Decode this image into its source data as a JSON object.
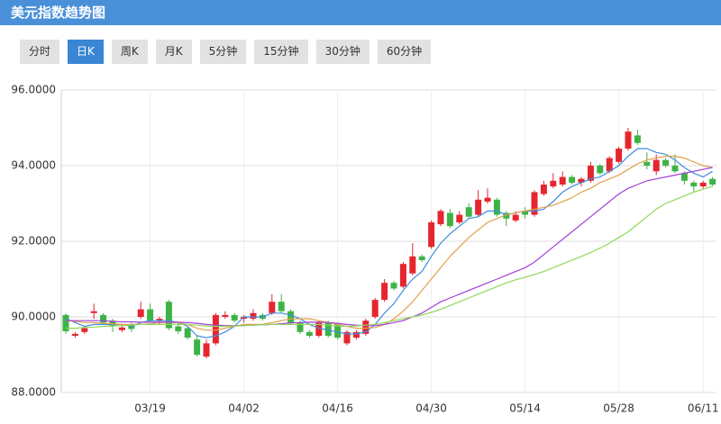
{
  "header": {
    "title": "美元指数趋势图"
  },
  "tabs": [
    "分时",
    "日K",
    "周K",
    "月K",
    "5分钟",
    "15分钟",
    "30分钟",
    "60分钟"
  ],
  "active_tab": 1,
  "chart_data": {
    "type": "candlestick",
    "categories": [
      null,
      null,
      null,
      null,
      null,
      null,
      null,
      null,
      null,
      "03/19",
      null,
      null,
      null,
      null,
      null,
      null,
      null,
      null,
      null,
      "04/02",
      null,
      null,
      null,
      null,
      null,
      null,
      null,
      null,
      null,
      "04/16",
      null,
      null,
      null,
      null,
      null,
      null,
      null,
      null,
      null,
      "04/30",
      null,
      null,
      null,
      null,
      null,
      null,
      null,
      null,
      null,
      "05/14",
      null,
      null,
      null,
      null,
      null,
      null,
      null,
      null,
      null,
      "05/28",
      null,
      null,
      null,
      null,
      null,
      null,
      null,
      null,
      "06/11",
      null
    ],
    "open": [
      90.05,
      89.5,
      89.6,
      90.1,
      90.05,
      89.9,
      89.65,
      89.8,
      90.0,
      90.2,
      89.9,
      90.4,
      89.75,
      89.7,
      89.4,
      88.95,
      89.3,
      90.0,
      90.05,
      89.95,
      89.95,
      90.05,
      90.1,
      90.4,
      90.15,
      89.85,
      89.6,
      89.5,
      89.85,
      89.8,
      89.3,
      89.45,
      89.55,
      90.0,
      90.45,
      90.9,
      90.8,
      91.15,
      91.6,
      91.85,
      92.45,
      92.75,
      92.5,
      92.9,
      92.7,
      93.05,
      93.1,
      92.75,
      92.55,
      92.8,
      92.7,
      93.25,
      93.45,
      93.5,
      93.7,
      93.55,
      93.6,
      94.0,
      93.85,
      94.1,
      94.45,
      94.8,
      94.1,
      93.85,
      94.15,
      94.0,
      93.8,
      93.55,
      93.45,
      93.65
    ],
    "high": [
      90.1,
      89.6,
      89.75,
      90.35,
      90.1,
      89.95,
      89.8,
      89.85,
      90.4,
      90.35,
      90.0,
      90.45,
      89.85,
      89.75,
      89.5,
      89.4,
      90.1,
      90.15,
      90.1,
      90.05,
      90.2,
      90.1,
      90.6,
      90.6,
      90.2,
      89.9,
      89.65,
      89.9,
      89.9,
      89.85,
      89.65,
      89.65,
      89.95,
      90.5,
      91.0,
      90.95,
      91.45,
      91.95,
      91.65,
      92.55,
      92.85,
      92.85,
      92.8,
      93.0,
      93.35,
      93.4,
      93.15,
      92.8,
      92.8,
      92.9,
      93.35,
      93.6,
      93.8,
      93.85,
      93.75,
      93.7,
      94.1,
      94.05,
      94.25,
      94.5,
      95.0,
      94.95,
      94.35,
      94.3,
      94.2,
      94.3,
      93.85,
      93.6,
      93.6,
      93.7
    ],
    "low": [
      89.55,
      89.45,
      89.55,
      89.95,
      89.8,
      89.6,
      89.6,
      89.6,
      89.95,
      89.85,
      89.8,
      89.65,
      89.55,
      89.4,
      88.95,
      88.9,
      89.25,
      89.95,
      89.85,
      89.85,
      89.9,
      89.9,
      90.05,
      90.1,
      89.8,
      89.55,
      89.45,
      89.45,
      89.45,
      89.4,
      89.25,
      89.4,
      89.5,
      89.95,
      90.4,
      90.7,
      90.75,
      91.1,
      91.45,
      91.8,
      92.4,
      92.35,
      92.45,
      92.6,
      92.65,
      93.0,
      92.65,
      92.4,
      92.5,
      92.6,
      92.65,
      93.2,
      93.4,
      93.45,
      93.5,
      93.45,
      93.55,
      93.75,
      93.8,
      94.05,
      94.4,
      94.55,
      93.9,
      93.75,
      93.95,
      93.8,
      93.5,
      93.3,
      93.4,
      93.45
    ],
    "close": [
      89.62,
      89.55,
      89.7,
      90.15,
      89.85,
      89.75,
      89.72,
      89.68,
      90.2,
      89.9,
      89.95,
      89.7,
      89.62,
      89.45,
      89.0,
      89.3,
      90.05,
      90.05,
      89.9,
      90.0,
      90.1,
      89.95,
      90.4,
      90.15,
      89.85,
      89.6,
      89.5,
      89.85,
      89.5,
      89.45,
      89.6,
      89.6,
      89.9,
      90.45,
      90.9,
      90.75,
      91.4,
      91.6,
      91.5,
      92.5,
      92.8,
      92.4,
      92.7,
      92.65,
      93.1,
      93.15,
      92.7,
      92.6,
      92.7,
      92.7,
      93.3,
      93.5,
      93.6,
      93.7,
      93.55,
      93.65,
      94.0,
      93.8,
      94.2,
      94.45,
      94.9,
      94.6,
      94.0,
      94.15,
      94.0,
      93.85,
      93.6,
      93.45,
      93.55,
      93.5
    ],
    "up_color": "#e5262f",
    "down_color": "#3db346",
    "series": [
      {
        "color": "#3d8ee0",
        "values": [
          89.95,
          89.85,
          89.75,
          89.8,
          89.8,
          89.8,
          89.8,
          89.75,
          89.85,
          89.9,
          89.9,
          89.9,
          89.85,
          89.75,
          89.5,
          89.45,
          89.5,
          89.6,
          89.75,
          90.0,
          90.0,
          90.0,
          90.1,
          90.1,
          90.05,
          89.95,
          89.8,
          89.7,
          89.65,
          89.6,
          89.55,
          89.55,
          89.6,
          89.8,
          90.1,
          90.35,
          90.7,
          91.0,
          91.2,
          91.6,
          91.95,
          92.2,
          92.4,
          92.6,
          92.65,
          92.8,
          92.8,
          92.7,
          92.75,
          92.8,
          92.8,
          92.85,
          93.05,
          93.3,
          93.45,
          93.55,
          93.65,
          93.7,
          93.85,
          94.0,
          94.25,
          94.45,
          94.45,
          94.35,
          94.3,
          94.15,
          93.95,
          93.8,
          93.7,
          93.85
        ]
      },
      {
        "color": "#e3a04a",
        "values": [
          89.9,
          89.88,
          89.85,
          89.85,
          89.83,
          89.82,
          89.8,
          89.8,
          89.8,
          89.82,
          89.85,
          89.85,
          89.85,
          89.8,
          89.7,
          89.65,
          89.65,
          89.7,
          89.75,
          89.8,
          89.8,
          89.8,
          89.85,
          89.9,
          89.95,
          89.95,
          89.95,
          89.9,
          89.85,
          89.8,
          89.75,
          89.7,
          89.7,
          89.72,
          89.8,
          89.95,
          90.15,
          90.4,
          90.7,
          91.0,
          91.3,
          91.6,
          91.85,
          92.1,
          92.3,
          92.5,
          92.6,
          92.7,
          92.75,
          92.8,
          92.85,
          92.9,
          92.95,
          93.05,
          93.15,
          93.3,
          93.4,
          93.55,
          93.65,
          93.75,
          93.9,
          94.05,
          94.15,
          94.2,
          94.25,
          94.25,
          94.2,
          94.1,
          94.0,
          93.95
        ]
      },
      {
        "color": "#a43fd8",
        "values": [
          89.9,
          89.9,
          89.9,
          89.9,
          89.9,
          89.88,
          89.87,
          89.87,
          89.86,
          89.86,
          89.86,
          89.86,
          89.86,
          89.85,
          89.83,
          89.8,
          89.78,
          89.77,
          89.77,
          89.77,
          89.78,
          89.79,
          89.8,
          89.82,
          89.84,
          89.85,
          89.86,
          89.86,
          89.85,
          89.83,
          89.8,
          89.78,
          89.77,
          89.77,
          89.8,
          89.85,
          89.9,
          90.0,
          90.1,
          90.25,
          90.4,
          90.5,
          90.6,
          90.7,
          90.8,
          90.9,
          91.0,
          91.1,
          91.2,
          91.3,
          91.45,
          91.65,
          91.85,
          92.05,
          92.25,
          92.45,
          92.65,
          92.85,
          93.05,
          93.25,
          93.4,
          93.5,
          93.6,
          93.65,
          93.7,
          93.75,
          93.8,
          93.85,
          93.9,
          93.95
        ]
      },
      {
        "color": "#8fd85a",
        "values": [
          89.7,
          89.7,
          89.72,
          89.73,
          89.75,
          89.76,
          89.77,
          89.78,
          89.8,
          89.8,
          89.8,
          89.8,
          89.8,
          89.8,
          89.78,
          89.76,
          89.75,
          89.75,
          89.76,
          89.77,
          89.78,
          89.79,
          89.8,
          89.8,
          89.8,
          89.8,
          89.8,
          89.8,
          89.78,
          89.76,
          89.75,
          89.76,
          89.78,
          89.8,
          89.85,
          89.9,
          89.95,
          90.0,
          90.05,
          90.12,
          90.2,
          90.3,
          90.4,
          90.5,
          90.6,
          90.7,
          90.8,
          90.9,
          90.98,
          91.05,
          91.12,
          91.2,
          91.3,
          91.4,
          91.5,
          91.6,
          91.7,
          91.82,
          91.95,
          92.1,
          92.25,
          92.45,
          92.65,
          92.85,
          93.0,
          93.1,
          93.2,
          93.3,
          93.38,
          93.45
        ]
      }
    ],
    "ylim": [
      88,
      96
    ],
    "yticks": [
      {
        "value": 88,
        "label": "88.0000"
      },
      {
        "value": 90,
        "label": "90.0000"
      },
      {
        "value": 92,
        "label": "92.0000"
      },
      {
        "value": 94,
        "label": "94.0000"
      },
      {
        "value": 96,
        "label": "96.0000"
      }
    ],
    "grid": true
  }
}
